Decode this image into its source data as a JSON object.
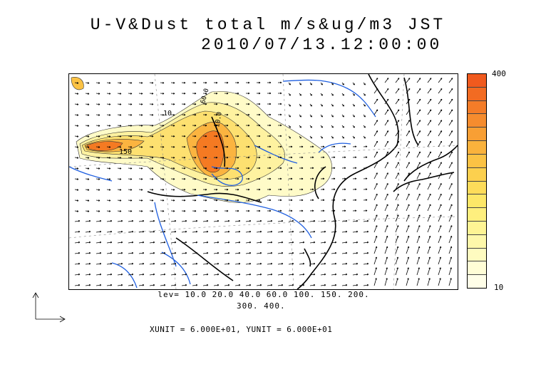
{
  "title": {
    "line1": "U-V&Dust total m/s&ug/m3 JST",
    "line2": "2010/07/13.12:00:00"
  },
  "colorbar": {
    "max_label": "400",
    "min_label": "10",
    "colors": [
      "#f05a1e",
      "#f26b22",
      "#f47c28",
      "#f68c2e",
      "#f89f34",
      "#fab23c",
      "#fbc244",
      "#fcd04e",
      "#fddc5a",
      "#fde768",
      "#feef7e",
      "#fef494",
      "#fef8aa",
      "#fefbc0",
      "#fffdd6",
      "#fffee8"
    ]
  },
  "contour_levels": {
    "line1": "lev= 10.0 20.0 40.0 60.0 100. 150. 200.",
    "line2": "300. 400."
  },
  "contour_labels": {
    "a": "10",
    "b": "150",
    "c": "60.0",
    "d": "10.0"
  },
  "unit_vectors": "XUNIT = 6.000E+01, YUNIT = 6.000E+01",
  "colors": {
    "coast": "#000000",
    "river": "#1f5fe0",
    "grid": "#777777"
  }
}
